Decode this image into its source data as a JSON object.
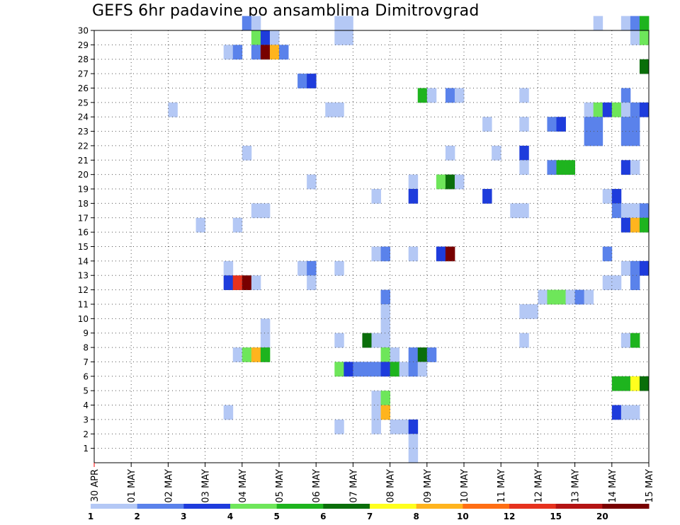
{
  "title": "GEFS 6hr padavine po ansamblima Dimitrovgrad",
  "chart_data": {
    "type": "heatmap",
    "title": "GEFS 6hr padavine po ansamblima Dimitrovgrad",
    "xlabel": "",
    "ylabel": "",
    "x_tick_labels": [
      "30 APR",
      "01 MAY",
      "02 MAY",
      "03 MAY",
      "04 MAY",
      "05 MAY",
      "06 MAY",
      "07 MAY",
      "08 MAY",
      "09 MAY",
      "10 MAY",
      "11 MAY",
      "12 MAY",
      "13 MAY",
      "14 MAY",
      "15 MAY"
    ],
    "x_range": [
      0,
      60
    ],
    "x_unit": "6-hour steps from 30 APR 00Z",
    "y_range": [
      0,
      30
    ],
    "y_ticks": [
      1,
      2,
      3,
      4,
      5,
      6,
      7,
      8,
      9,
      10,
      11,
      12,
      13,
      14,
      15,
      16,
      17,
      18,
      19,
      20,
      21,
      22,
      23,
      24,
      25,
      26,
      27,
      28,
      29,
      30
    ],
    "grid": true,
    "legend_position": "bottom",
    "legend": {
      "labels": [
        "1",
        "2",
        "3",
        "4",
        "5",
        "6",
        "7",
        "8",
        "10",
        "12",
        "15",
        "20"
      ],
      "colors": [
        "#b4c8f5",
        "#5a82eb",
        "#1e3cdc",
        "#6ee65a",
        "#1eb41e",
        "#0a6e0a",
        "#ffff1e",
        "#ffb41e",
        "#ff6e14",
        "#e6321e",
        "#b41414",
        "#780000"
      ]
    },
    "cells": [
      [
        16,
        30,
        1
      ],
      [
        17,
        30,
        0
      ],
      [
        26,
        30,
        0
      ],
      [
        27,
        30,
        0
      ],
      [
        54,
        30,
        0
      ],
      [
        57,
        30,
        0
      ],
      [
        58,
        30,
        1
      ],
      [
        59,
        30,
        4
      ],
      [
        17,
        29,
        3
      ],
      [
        18,
        29,
        2
      ],
      [
        19,
        29,
        0
      ],
      [
        26,
        29,
        0
      ],
      [
        27,
        29,
        0
      ],
      [
        58,
        29,
        0
      ],
      [
        59,
        29,
        3
      ],
      [
        14,
        28,
        0
      ],
      [
        15,
        28,
        1
      ],
      [
        17,
        28,
        1
      ],
      [
        18,
        28,
        11
      ],
      [
        19,
        28,
        7
      ],
      [
        20,
        28,
        1
      ],
      [
        59,
        27,
        5
      ],
      [
        22,
        26,
        1
      ],
      [
        23,
        26,
        2
      ],
      [
        35,
        25,
        4
      ],
      [
        36,
        25,
        0
      ],
      [
        38,
        25,
        1
      ],
      [
        39,
        25,
        0
      ],
      [
        46,
        25,
        0
      ],
      [
        57,
        25,
        1
      ],
      [
        8,
        24,
        0
      ],
      [
        25,
        24,
        0
      ],
      [
        26,
        24,
        0
      ],
      [
        53,
        24,
        0
      ],
      [
        54,
        24,
        3
      ],
      [
        55,
        24,
        2
      ],
      [
        56,
        24,
        3
      ],
      [
        57,
        24,
        0
      ],
      [
        58,
        24,
        1
      ],
      [
        59,
        24,
        2
      ],
      [
        42,
        23,
        0
      ],
      [
        46,
        23,
        0
      ],
      [
        49,
        23,
        1
      ],
      [
        50,
        23,
        2
      ],
      [
        53,
        23,
        1
      ],
      [
        54,
        23,
        1
      ],
      [
        57,
        23,
        1
      ],
      [
        58,
        23,
        1
      ],
      [
        53,
        22,
        1
      ],
      [
        54,
        22,
        1
      ],
      [
        57,
        22,
        1
      ],
      [
        58,
        22,
        1
      ],
      [
        16,
        21,
        0
      ],
      [
        38,
        21,
        0
      ],
      [
        43,
        21,
        0
      ],
      [
        46,
        21,
        2
      ],
      [
        46,
        20,
        0
      ],
      [
        49,
        20,
        1
      ],
      [
        50,
        20,
        4
      ],
      [
        51,
        20,
        4
      ],
      [
        57,
        20,
        2
      ],
      [
        58,
        20,
        0
      ],
      [
        23,
        19,
        0
      ],
      [
        34,
        19,
        0
      ],
      [
        37,
        19,
        3
      ],
      [
        38,
        19,
        5
      ],
      [
        39,
        19,
        0
      ],
      [
        30,
        18,
        0
      ],
      [
        34,
        18,
        2
      ],
      [
        42,
        18,
        2
      ],
      [
        55,
        18,
        0
      ],
      [
        56,
        18,
        2
      ],
      [
        17,
        17,
        0
      ],
      [
        18,
        17,
        0
      ],
      [
        45,
        17,
        0
      ],
      [
        46,
        17,
        0
      ],
      [
        56,
        17,
        1
      ],
      [
        57,
        17,
        0
      ],
      [
        58,
        17,
        0
      ],
      [
        59,
        17,
        1
      ],
      [
        11,
        16,
        0
      ],
      [
        15,
        16,
        0
      ],
      [
        57,
        16,
        2
      ],
      [
        58,
        16,
        7
      ],
      [
        59,
        16,
        4
      ],
      [
        30,
        14,
        0
      ],
      [
        31,
        14,
        1
      ],
      [
        34,
        14,
        0
      ],
      [
        37,
        14,
        2
      ],
      [
        38,
        14,
        11
      ],
      [
        55,
        14,
        1
      ],
      [
        14,
        13,
        0
      ],
      [
        22,
        13,
        0
      ],
      [
        23,
        13,
        1
      ],
      [
        26,
        13,
        0
      ],
      [
        57,
        13,
        0
      ],
      [
        58,
        13,
        1
      ],
      [
        59,
        13,
        2
      ],
      [
        14,
        12,
        2
      ],
      [
        15,
        12,
        9
      ],
      [
        16,
        12,
        11
      ],
      [
        17,
        12,
        0
      ],
      [
        23,
        12,
        0
      ],
      [
        55,
        12,
        0
      ],
      [
        56,
        12,
        0
      ],
      [
        58,
        12,
        1
      ],
      [
        31,
        11,
        1
      ],
      [
        48,
        11,
        0
      ],
      [
        49,
        11,
        3
      ],
      [
        50,
        11,
        3
      ],
      [
        51,
        11,
        0
      ],
      [
        52,
        11,
        1
      ],
      [
        53,
        11,
        0
      ],
      [
        31,
        10,
        0
      ],
      [
        46,
        10,
        0
      ],
      [
        47,
        10,
        0
      ],
      [
        18,
        9,
        0
      ],
      [
        31,
        9,
        0
      ],
      [
        18,
        8,
        0
      ],
      [
        26,
        8,
        0
      ],
      [
        29,
        8,
        5
      ],
      [
        30,
        8,
        0
      ],
      [
        31,
        8,
        0
      ],
      [
        46,
        8,
        0
      ],
      [
        57,
        8,
        0
      ],
      [
        58,
        8,
        4
      ],
      [
        15,
        7,
        0
      ],
      [
        16,
        7,
        3
      ],
      [
        17,
        7,
        7
      ],
      [
        18,
        7,
        4
      ],
      [
        31,
        7,
        3
      ],
      [
        32,
        7,
        0
      ],
      [
        34,
        7,
        1
      ],
      [
        35,
        7,
        5
      ],
      [
        36,
        7,
        1
      ],
      [
        26,
        6,
        3
      ],
      [
        27,
        6,
        2
      ],
      [
        28,
        6,
        1
      ],
      [
        29,
        6,
        1
      ],
      [
        30,
        6,
        1
      ],
      [
        31,
        6,
        2
      ],
      [
        32,
        6,
        4
      ],
      [
        33,
        6,
        0
      ],
      [
        34,
        6,
        1
      ],
      [
        35,
        6,
        0
      ],
      [
        56,
        5,
        4
      ],
      [
        57,
        5,
        4
      ],
      [
        58,
        5,
        6
      ],
      [
        59,
        5,
        5
      ],
      [
        30,
        4,
        0
      ],
      [
        31,
        4,
        3
      ],
      [
        14,
        3,
        0
      ],
      [
        30,
        3,
        0
      ],
      [
        31,
        3,
        7
      ],
      [
        56,
        3,
        2
      ],
      [
        57,
        3,
        0
      ],
      [
        58,
        3,
        0
      ],
      [
        26,
        2,
        0
      ],
      [
        30,
        2,
        0
      ],
      [
        32,
        2,
        0
      ],
      [
        33,
        2,
        0
      ],
      [
        34,
        2,
        2
      ],
      [
        34,
        1,
        0
      ],
      [
        34,
        0,
        0
      ]
    ]
  }
}
